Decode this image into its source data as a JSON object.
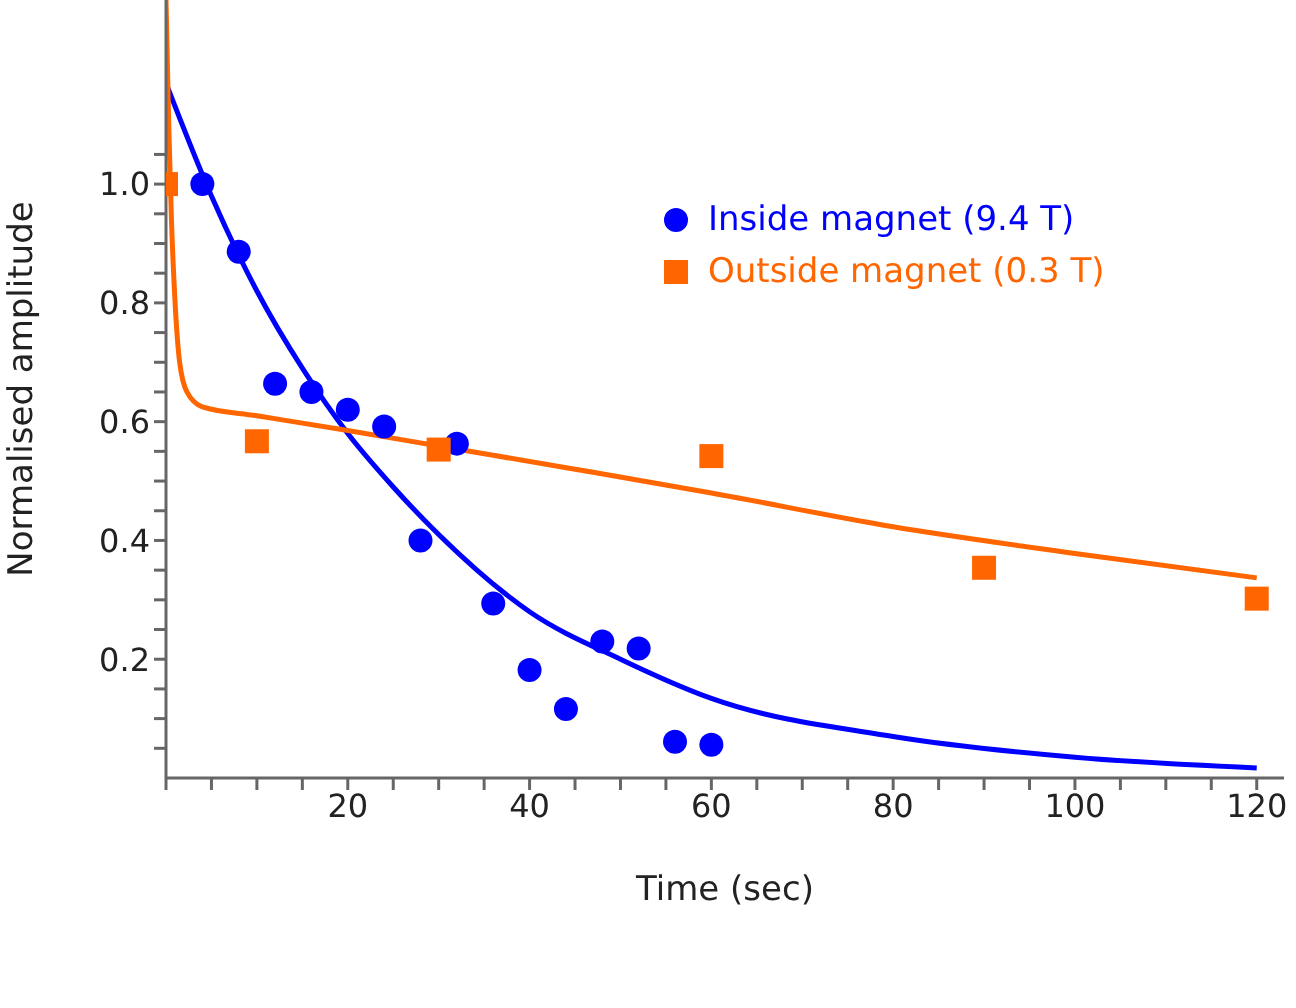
{
  "chart_data": {
    "type": "scatter",
    "xlabel": "Time (sec)",
    "ylabel": "Normalised amplitude",
    "xlim": [
      0,
      123
    ],
    "ylim": [
      0,
      1.31
    ],
    "xticks": [
      {
        "value": 0,
        "label": null
      },
      {
        "value": 5,
        "label": null
      },
      {
        "value": 10,
        "label": null
      },
      {
        "value": 15,
        "label": null
      },
      20,
      {
        "value": 25,
        "label": null
      },
      {
        "value": 30,
        "label": null
      },
      {
        "value": 35,
        "label": null
      },
      40,
      {
        "value": 45,
        "label": null
      },
      {
        "value": 50,
        "label": null
      },
      {
        "value": 55,
        "label": null
      },
      60,
      {
        "value": 65,
        "label": null
      },
      {
        "value": 70,
        "label": null
      },
      {
        "value": 75,
        "label": null
      },
      80,
      {
        "value": 85,
        "label": null
      },
      {
        "value": 90,
        "label": null
      },
      {
        "value": 95,
        "label": null
      },
      100,
      {
        "value": 105,
        "label": null
      },
      {
        "value": 110,
        "label": null
      },
      {
        "value": 115,
        "label": null
      },
      120
    ],
    "yticks": [
      {
        "value": 0.05,
        "label": null
      },
      {
        "value": 0.1,
        "label": null
      },
      {
        "value": 0.15,
        "label": null
      },
      {
        "value": 0.2,
        "label": "0.2"
      },
      {
        "value": 0.25,
        "label": null
      },
      {
        "value": 0.3,
        "label": null
      },
      {
        "value": 0.35,
        "label": null
      },
      {
        "value": 0.4,
        "label": "0.4"
      },
      {
        "value": 0.45,
        "label": null
      },
      {
        "value": 0.5,
        "label": null
      },
      {
        "value": 0.55,
        "label": null
      },
      {
        "value": 0.6,
        "label": "0.6"
      },
      {
        "value": 0.65,
        "label": null
      },
      {
        "value": 0.7,
        "label": null
      },
      {
        "value": 0.75,
        "label": null
      },
      {
        "value": 0.8,
        "label": "0.8"
      },
      {
        "value": 0.85,
        "label": null
      },
      {
        "value": 0.9,
        "label": null
      },
      {
        "value": 0.95,
        "label": null
      },
      {
        "value": 1.0,
        "label": "1.0"
      },
      {
        "value": 1.05,
        "label": null
      }
    ],
    "legend": "top right",
    "series": [
      {
        "name": "Inside magnet (9.4 T)",
        "marker": "circle",
        "color": "#0000ff",
        "x": [
          4,
          8,
          12,
          16,
          20,
          24,
          28,
          32,
          36,
          40,
          44,
          48,
          52,
          56,
          60
        ],
        "values": [
          1.0,
          0.886,
          0.664,
          0.65,
          0.62,
          0.592,
          0.4,
          0.563,
          0.294,
          0.182,
          0.116,
          0.23,
          0.218,
          0.061,
          0.056
        ]
      },
      {
        "name": "Outside magnet (0.3 T)",
        "marker": "square",
        "color": "#ff6600",
        "x": [
          0,
          10,
          30,
          60,
          90,
          120
        ],
        "values": [
          1.0,
          0.567,
          0.553,
          0.542,
          0.354,
          0.302
        ]
      },
      {
        "type": "line",
        "marker": "none",
        "color": "#0000ff",
        "x": [
          0,
          5,
          10,
          15,
          20,
          25,
          30,
          40,
          50,
          60,
          80,
          100,
          120
        ],
        "values": [
          1.17,
          0.98,
          0.82,
          0.69,
          0.58,
          0.49,
          0.41,
          0.28,
          0.2,
          0.134,
          0.07,
          0.035,
          0.017
        ]
      },
      {
        "type": "line",
        "marker": "none",
        "color": "#ff6600",
        "x": [
          0,
          0.3,
          0.6,
          1,
          1.5,
          2.3,
          4,
          10,
          20,
          30,
          45,
          60,
          80,
          100,
          120
        ],
        "values": [
          1.31,
          1.1,
          0.94,
          0.8,
          0.7,
          0.65,
          0.625,
          0.61,
          0.585,
          0.559,
          0.52,
          0.48,
          0.423,
          0.378,
          0.337
        ]
      }
    ]
  }
}
